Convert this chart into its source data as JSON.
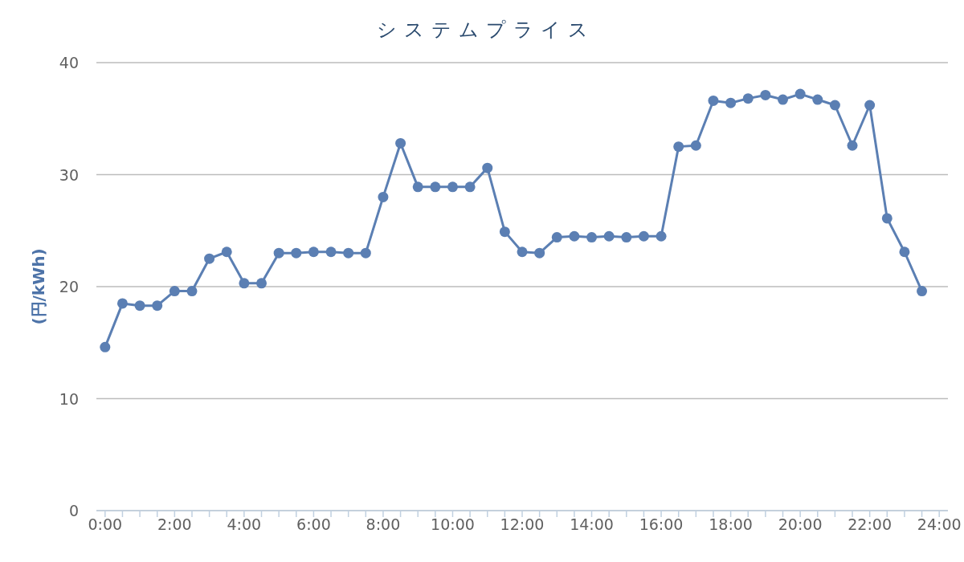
{
  "chart_data": {
    "type": "line",
    "title": "システムプライス",
    "ylabel": "(円/kWh)",
    "x": [
      0,
      0.5,
      1,
      1.5,
      2,
      2.5,
      3,
      3.5,
      4,
      4.5,
      5,
      5.5,
      6,
      6.5,
      7,
      7.5,
      8,
      8.5,
      9,
      9.5,
      10,
      10.5,
      11,
      11.5,
      12,
      12.5,
      13,
      13.5,
      14,
      14.5,
      15,
      15.5,
      16,
      16.5,
      17,
      17.5,
      18,
      18.5,
      19,
      19.5,
      20,
      20.5,
      21,
      21.5,
      22,
      22.5,
      23,
      23.5
    ],
    "values": [
      14.6,
      18.5,
      18.3,
      18.3,
      19.6,
      19.6,
      22.5,
      23.1,
      20.3,
      20.3,
      23.0,
      23.0,
      23.1,
      23.1,
      23.0,
      23.0,
      28.0,
      32.8,
      28.9,
      28.9,
      28.9,
      28.9,
      30.6,
      24.9,
      23.1,
      23.0,
      24.4,
      24.5,
      24.4,
      24.5,
      24.4,
      24.5,
      24.5,
      32.5,
      32.6,
      36.6,
      36.4,
      36.8,
      37.1,
      36.7,
      37.2,
      36.7,
      36.2,
      32.6,
      36.2,
      26.1,
      23.1,
      19.6
    ],
    "color": "#5b7fb3",
    "marker": "circle",
    "xlim": [
      -0.25,
      24.25
    ],
    "xticks": [
      {
        "value": 0,
        "label": "0:00"
      },
      {
        "value": 0.5,
        "label": null
      },
      {
        "value": 1,
        "label": null
      },
      {
        "value": 1.5,
        "label": null
      },
      {
        "value": 2,
        "label": "2:00"
      },
      {
        "value": 2.5,
        "label": null
      },
      {
        "value": 3,
        "label": null
      },
      {
        "value": 3.5,
        "label": null
      },
      {
        "value": 4,
        "label": "4:00"
      },
      {
        "value": 4.5,
        "label": null
      },
      {
        "value": 5,
        "label": null
      },
      {
        "value": 5.5,
        "label": null
      },
      {
        "value": 6,
        "label": "6:00"
      },
      {
        "value": 6.5,
        "label": null
      },
      {
        "value": 7,
        "label": null
      },
      {
        "value": 7.5,
        "label": null
      },
      {
        "value": 8,
        "label": "8:00"
      },
      {
        "value": 8.5,
        "label": null
      },
      {
        "value": 9,
        "label": null
      },
      {
        "value": 9.5,
        "label": null
      },
      {
        "value": 10,
        "label": "10:00"
      },
      {
        "value": 10.5,
        "label": null
      },
      {
        "value": 11,
        "label": null
      },
      {
        "value": 11.5,
        "label": null
      },
      {
        "value": 12,
        "label": "12:00"
      },
      {
        "value": 12.5,
        "label": null
      },
      {
        "value": 13,
        "label": null
      },
      {
        "value": 13.5,
        "label": null
      },
      {
        "value": 14,
        "label": "14:00"
      },
      {
        "value": 14.5,
        "label": null
      },
      {
        "value": 15,
        "label": null
      },
      {
        "value": 15.5,
        "label": null
      },
      {
        "value": 16,
        "label": "16:00"
      },
      {
        "value": 16.5,
        "label": null
      },
      {
        "value": 17,
        "label": null
      },
      {
        "value": 17.5,
        "label": null
      },
      {
        "value": 18,
        "label": "18:00"
      },
      {
        "value": 18.5,
        "label": null
      },
      {
        "value": 19,
        "label": null
      },
      {
        "value": 19.5,
        "label": null
      },
      {
        "value": 20,
        "label": "20:00"
      },
      {
        "value": 20.5,
        "label": null
      },
      {
        "value": 21,
        "label": null
      },
      {
        "value": 21.5,
        "label": null
      },
      {
        "value": 22,
        "label": "22:00"
      },
      {
        "value": 22.5,
        "label": null
      },
      {
        "value": 23,
        "label": null
      },
      {
        "value": 23.5,
        "label": null
      },
      {
        "value": 24,
        "label": "24:00"
      }
    ],
    "ylim": [
      0,
      40
    ],
    "yticks": [
      0,
      10,
      20,
      30,
      40
    ],
    "grid": "y"
  }
}
